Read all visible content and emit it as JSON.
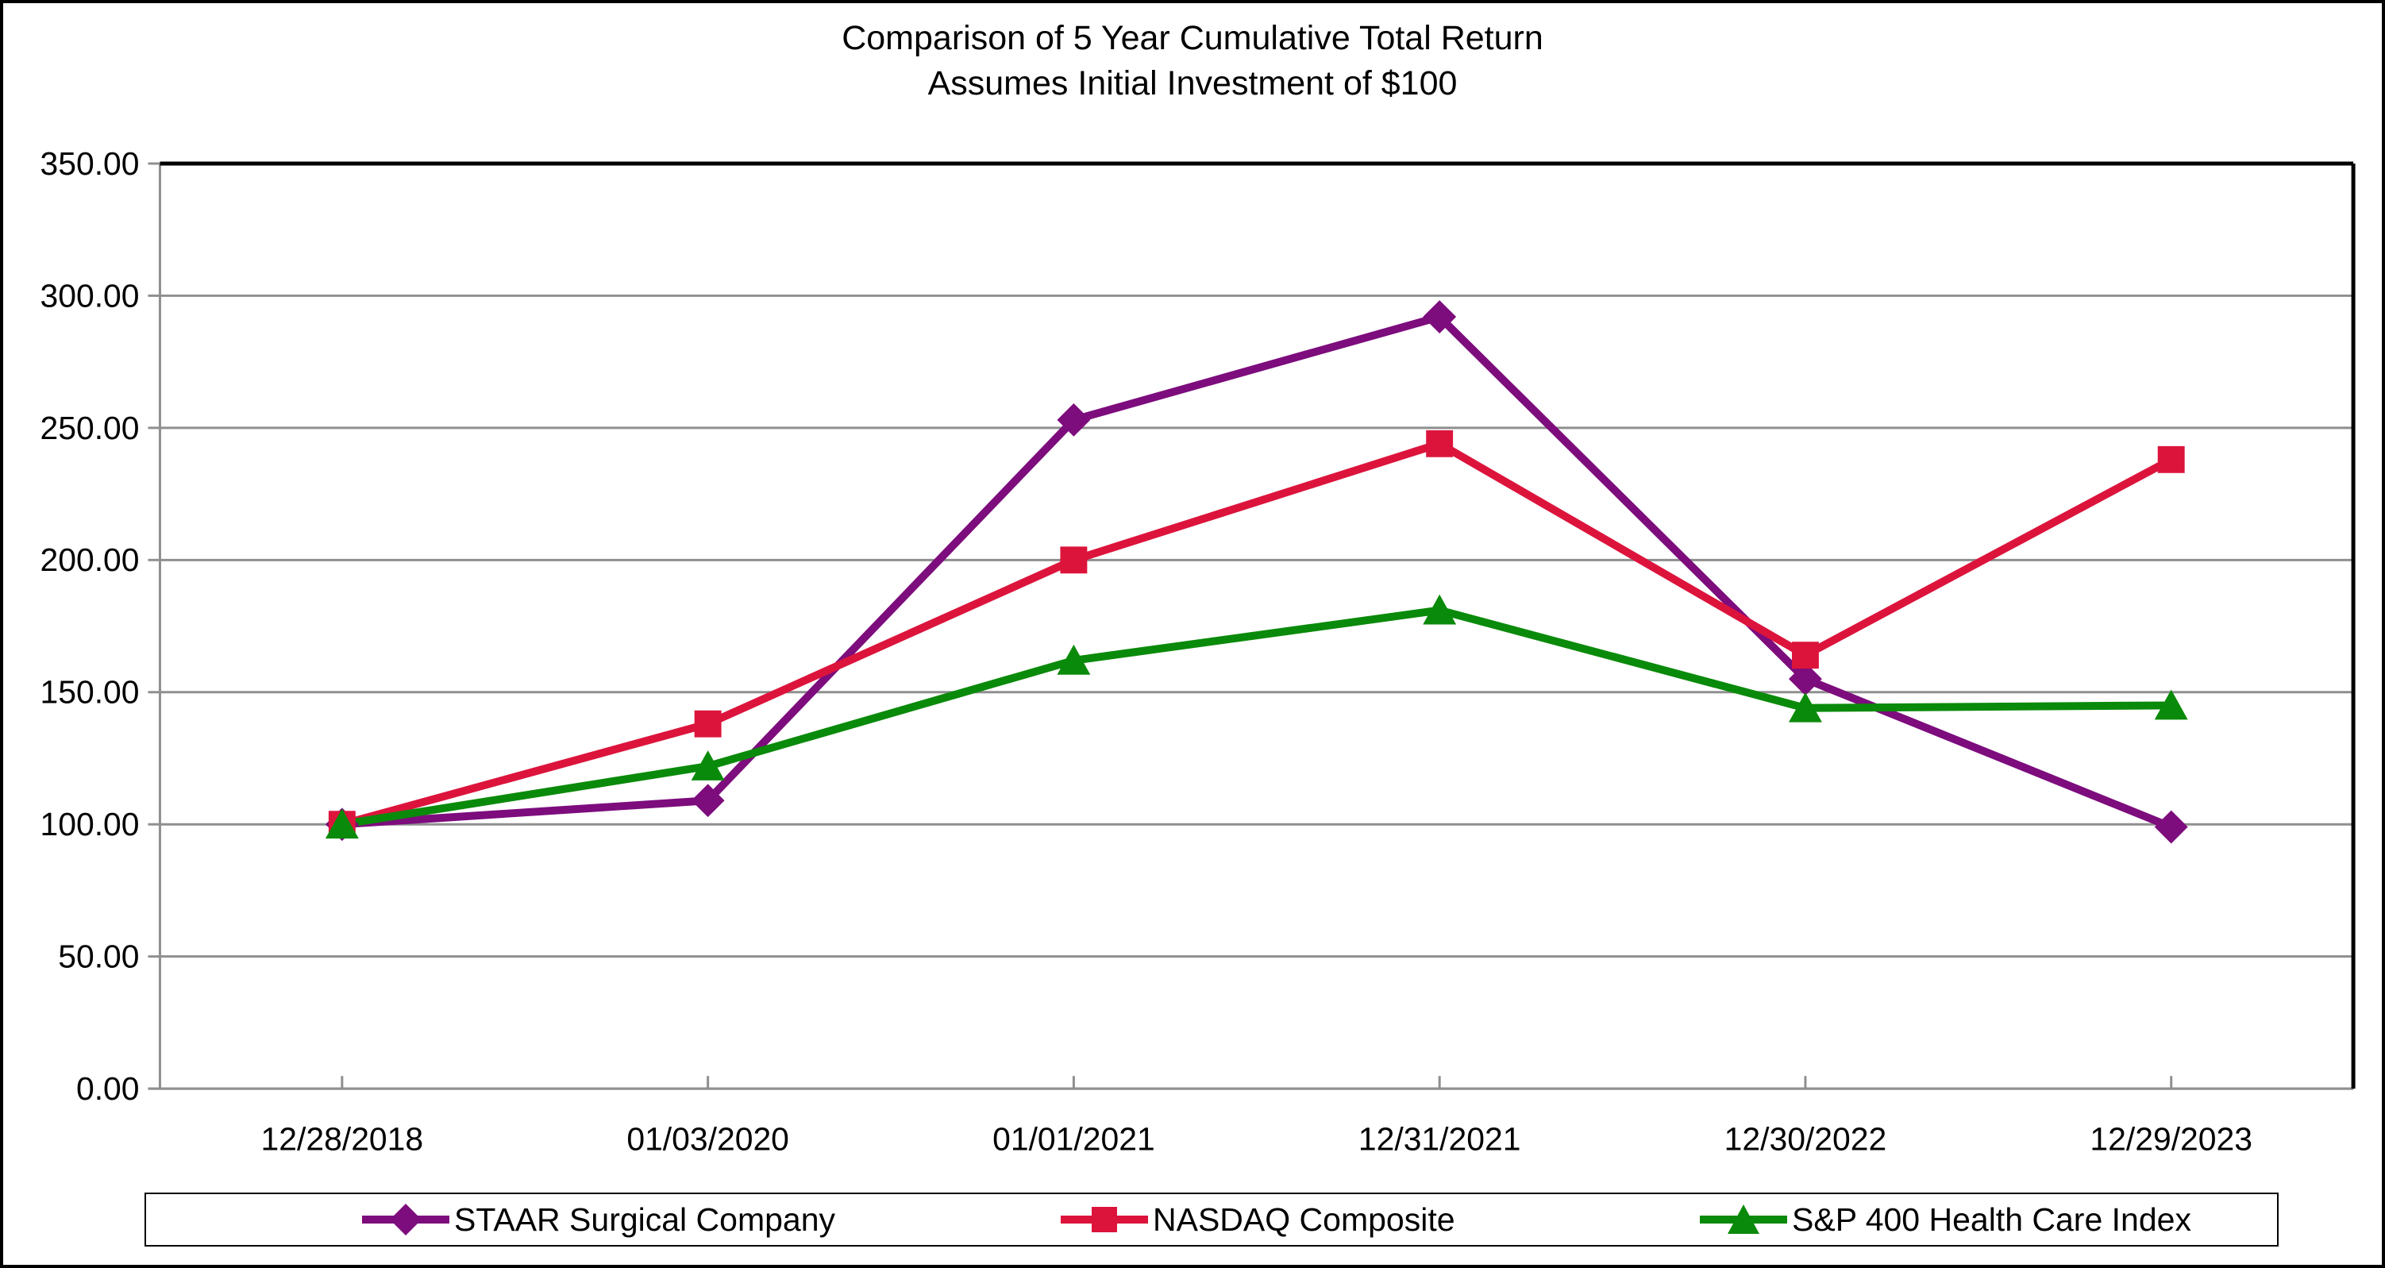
{
  "chart_data": {
    "type": "line",
    "title": "Comparison of 5 Year Cumulative Total Return",
    "subtitle": "Assumes Initial Investment of $100",
    "categories": [
      "12/28/2018",
      "01/03/2020",
      "01/01/2021",
      "12/31/2021",
      "12/30/2022",
      "12/29/2023"
    ],
    "series": [
      {
        "name": "STAAR Surgical Company",
        "color": "#7D0C7D",
        "marker": "diamond",
        "values": [
          100,
          109,
          253,
          292,
          155,
          99
        ]
      },
      {
        "name": "NASDAQ Composite",
        "color": "#DC143C",
        "marker": "square",
        "values": [
          100,
          138,
          200,
          244,
          164,
          238
        ]
      },
      {
        "name": "S&P 400 Health Care Index",
        "color": "#0A8A0A",
        "marker": "triangle",
        "values": [
          100,
          122,
          162,
          181,
          144,
          145
        ]
      }
    ],
    "ylim": [
      0,
      350
    ],
    "ytick_step": 50,
    "ytick_labels": [
      "0.00",
      "50.00",
      "100.00",
      "150.00",
      "200.00",
      "250.00",
      "300.00",
      "350.00"
    ],
    "grid": true,
    "legend_position": "bottom",
    "colors": {
      "gridline": "#8F8F8F",
      "axis": "#8F8F8F",
      "frame": "#000000",
      "text": "#000000",
      "background": "#FFFFFF"
    }
  }
}
